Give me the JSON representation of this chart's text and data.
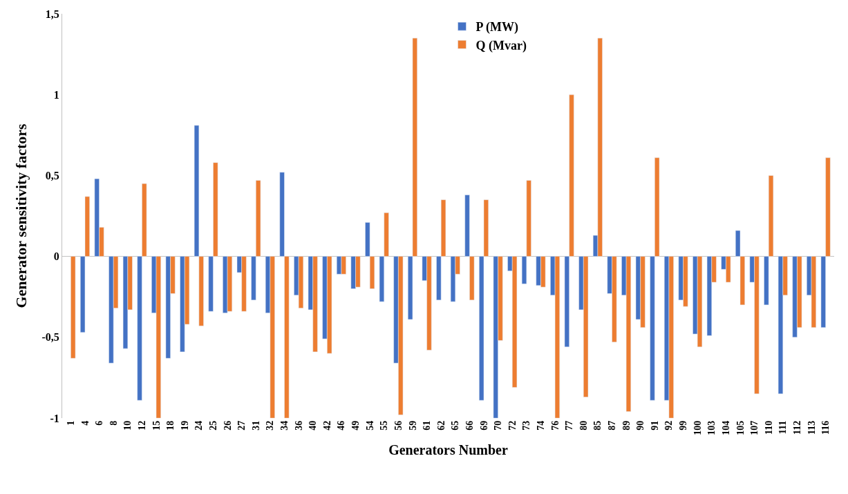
{
  "chart_data": {
    "type": "bar",
    "xlabel": "Generators Number",
    "ylabel": "Generator sensitivity factors",
    "categories": [
      "1",
      "4",
      "6",
      "8",
      "10",
      "12",
      "15",
      "18",
      "19",
      "24",
      "25",
      "26",
      "27",
      "31",
      "32",
      "34",
      "36",
      "40",
      "42",
      "46",
      "49",
      "54",
      "55",
      "56",
      "59",
      "61",
      "62",
      "65",
      "66",
      "69",
      "70",
      "72",
      "73",
      "74",
      "76",
      "77",
      "80",
      "85",
      "87",
      "89",
      "90",
      "91",
      "92",
      "99",
      "100",
      "103",
      "104",
      "105",
      "107",
      "110",
      "111",
      "112",
      "113",
      "116"
    ],
    "series": [
      {
        "name": "P (MW)",
        "color": "#4472c4",
        "values": [
          null,
          -0.47,
          0.48,
          -0.66,
          -0.57,
          -0.89,
          -0.35,
          -0.63,
          -0.59,
          0.81,
          -0.34,
          -0.35,
          -0.1,
          -0.27,
          -0.35,
          0.52,
          -0.24,
          -0.33,
          -0.51,
          -0.11,
          -0.2,
          0.21,
          -0.28,
          -0.66,
          -0.39,
          -0.15,
          -0.27,
          -0.28,
          0.38,
          -0.89,
          -1.0,
          -0.09,
          -0.17,
          -0.18,
          -0.24,
          -0.56,
          -0.33,
          0.13,
          -0.23,
          -0.24,
          -0.39,
          -0.89,
          -0.89,
          -0.27,
          -0.48,
          -0.49,
          -0.08,
          0.16,
          -0.16,
          -0.3,
          -0.85,
          -0.5,
          -0.24,
          -0.44
        ]
      },
      {
        "name": "Q (Mvar)",
        "color": "#ed7d31",
        "values": [
          -0.63,
          0.37,
          0.18,
          -0.32,
          -0.33,
          0.45,
          -1.0,
          -0.23,
          -0.42,
          -0.43,
          0.58,
          -0.34,
          -0.34,
          0.47,
          -1.0,
          -1.0,
          -0.32,
          -0.59,
          -0.6,
          -0.11,
          -0.19,
          -0.2,
          0.27,
          -0.98,
          1.35,
          -0.58,
          0.35,
          -0.11,
          -0.27,
          0.35,
          -0.52,
          -0.81,
          0.47,
          -0.19,
          -1.0,
          1.0,
          -0.87,
          1.35,
          -0.53,
          -0.96,
          -0.44,
          0.61,
          -1.0,
          -0.31,
          -0.56,
          -0.16,
          -0.16,
          -0.3,
          -0.85,
          0.5,
          -0.24,
          -0.44,
          -0.44,
          0.61
        ]
      }
    ],
    "ylim": [
      -1,
      1.5
    ],
    "yticks": [
      {
        "value": -1,
        "label": "-1"
      },
      {
        "value": -0.5,
        "label": "-0,5"
      },
      {
        "value": 0,
        "label": "0"
      },
      {
        "value": 0.5,
        "label": "0,5"
      },
      {
        "value": 1,
        "label": "1"
      },
      {
        "value": 1.5,
        "label": "1,5"
      }
    ],
    "ref_lines": [
      {
        "axis": "y",
        "value": 0,
        "color": "#bfbfbf"
      }
    ],
    "grid": false,
    "legend": "top"
  }
}
